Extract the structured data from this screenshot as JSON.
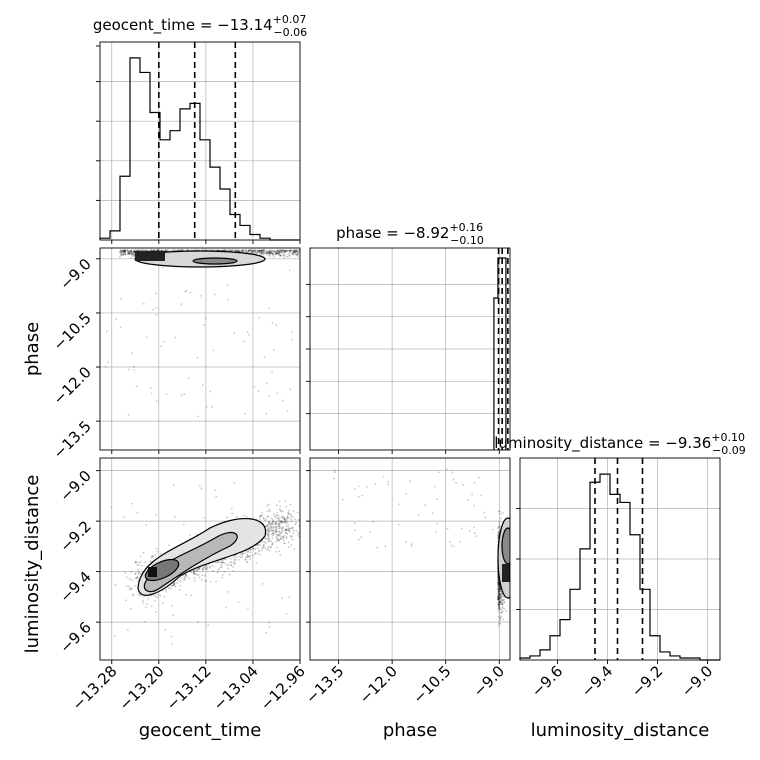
{
  "chart_data": [
    {
      "type": "histogram",
      "panel": "diag-geocent_time",
      "title_param": "geocent_time",
      "title_value": "−13.14",
      "title_plus": "+0.07",
      "title_minus": "−0.06",
      "xlim": [
        -13.3,
        -12.96
      ],
      "bins": [
        -13.3,
        -13.283,
        -13.266,
        -13.249,
        -13.232,
        -13.215,
        -13.198,
        -13.181,
        -13.164,
        -13.147,
        -13.13,
        -13.113,
        -13.096,
        -13.079,
        -13.062,
        -13.045,
        -13.028,
        -13.011,
        -12.994,
        -12.977,
        -12.96
      ],
      "counts": [
        0.01,
        0.05,
        0.35,
        1.0,
        0.92,
        0.7,
        0.55,
        0.6,
        0.72,
        0.75,
        0.55,
        0.4,
        0.28,
        0.14,
        0.08,
        0.03,
        0.01,
        0,
        0,
        0
      ],
      "quantiles": [
        -13.2,
        -13.139,
        -13.07
      ]
    },
    {
      "type": "scatter-contour",
      "panel": "phase-vs-geocent_time",
      "xlim": [
        -13.3,
        -12.96
      ],
      "ylim": [
        -14.3,
        -8.7
      ],
      "yticks": [
        "−9.0",
        "−10.5",
        "−12.0",
        "−13.5"
      ],
      "ylabel": "phase"
    },
    {
      "type": "histogram",
      "panel": "diag-phase",
      "title_param": "phase",
      "title_value": "−8.92",
      "title_plus": "+0.16",
      "title_minus": "−0.10",
      "xlim": [
        -14.3,
        -8.7
      ],
      "quantiles": [
        -9.02,
        -8.92,
        -8.76
      ]
    },
    {
      "type": "scatter-contour",
      "panel": "luminosity_distance-vs-geocent_time",
      "xlim": [
        -13.3,
        -12.96
      ],
      "ylim": [
        -9.75,
        -8.95
      ],
      "xticks": [
        "−13.28",
        "−13.20",
        "−13.12",
        "−13.04",
        "−12.96"
      ],
      "yticks": [
        "−9.0",
        "−9.2",
        "−9.4",
        "−9.6"
      ],
      "xlabel": "geocent_time",
      "ylabel": "luminosity_distance"
    },
    {
      "type": "scatter-contour",
      "panel": "luminosity_distance-vs-phase",
      "xlim": [
        -14.3,
        -8.7
      ],
      "ylim": [
        -9.75,
        -8.95
      ],
      "xticks": [
        "−13.5",
        "−12.0",
        "−10.5",
        "−9.0"
      ],
      "xlabel": "phase"
    },
    {
      "type": "histogram",
      "panel": "diag-luminosity_distance",
      "title_param": "luminosity_distance",
      "title_value": "−9.36",
      "title_plus": "+0.10",
      "title_minus": "−0.09",
      "xlim": [
        -9.75,
        -8.95
      ],
      "bins": [
        -9.75,
        -9.71,
        -9.67,
        -9.63,
        -9.59,
        -9.55,
        -9.51,
        -9.47,
        -9.43,
        -9.39,
        -9.35,
        -9.31,
        -9.27,
        -9.23,
        -9.19,
        -9.15,
        -9.11,
        -9.07,
        -9.03,
        -8.99,
        -8.95
      ],
      "counts": [
        0.01,
        0.02,
        0.05,
        0.12,
        0.2,
        0.35,
        0.55,
        0.88,
        0.92,
        0.82,
        0.78,
        0.62,
        0.35,
        0.12,
        0.04,
        0.02,
        0.01,
        0.01,
        0,
        0
      ],
      "xticks": [
        "−9.6",
        "−9.4",
        "−9.2",
        "−9.0"
      ],
      "xlabel": "luminosity_distance",
      "quantiles": [
        -9.45,
        -9.36,
        -9.26
      ]
    }
  ]
}
